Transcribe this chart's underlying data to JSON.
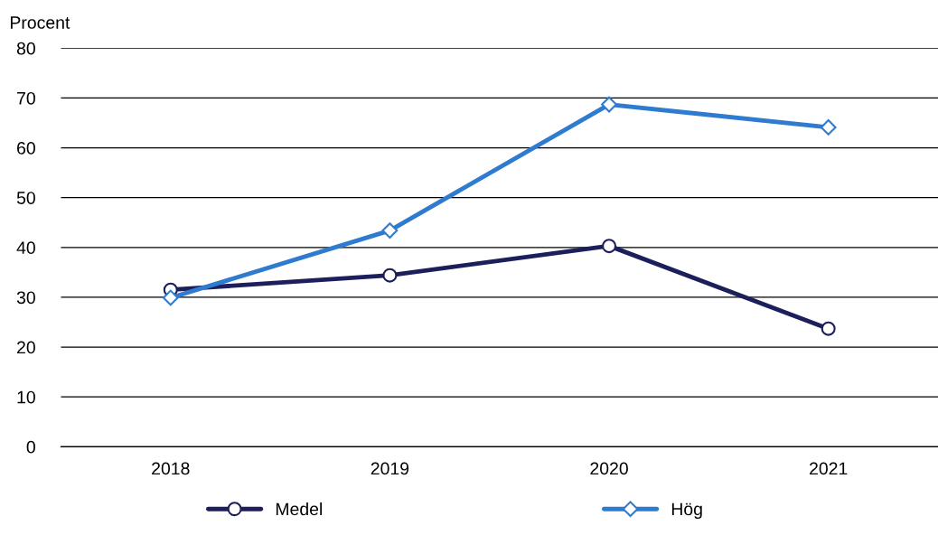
{
  "chart_data": {
    "type": "line",
    "ylabel": "Procent",
    "categories": [
      "2018",
      "2019",
      "2020",
      "2021"
    ],
    "series": [
      {
        "name": "Medel",
        "color": "#1c1f5c",
        "marker": "circle",
        "values": [
          31.5,
          34.4,
          40.3,
          23.7
        ]
      },
      {
        "name": "Hög",
        "color": "#2e7bd0",
        "marker": "diamond",
        "values": [
          29.9,
          43.4,
          68.7,
          64.1
        ]
      }
    ],
    "ylim": [
      0,
      80
    ],
    "yticks": [
      0,
      10,
      20,
      30,
      40,
      50,
      60,
      70,
      80
    ],
    "grid": "y",
    "legend": "bottom",
    "line_style": "solid"
  }
}
